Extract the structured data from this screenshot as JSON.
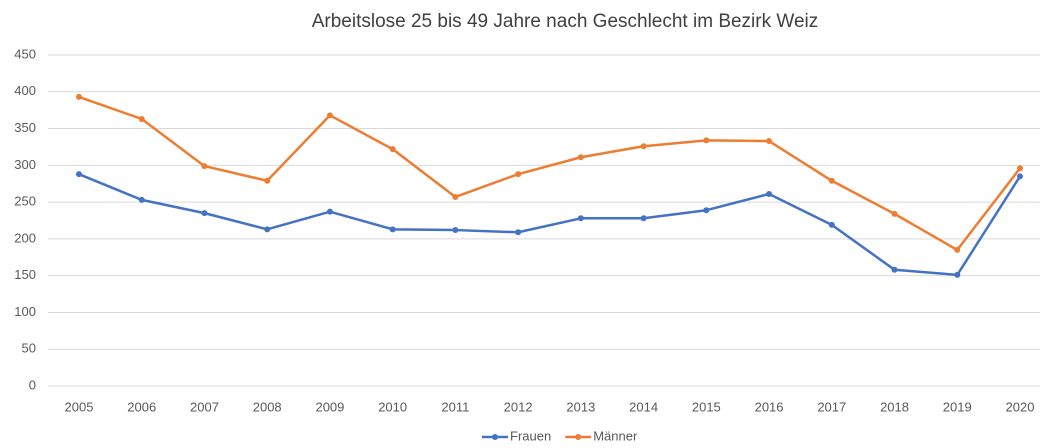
{
  "chart_data": {
    "type": "line",
    "title": "Arbeitslose 25 bis 49 Jahre nach Geschlecht im Bezirk Weiz",
    "categories": [
      "2005",
      "2006",
      "2007",
      "2008",
      "2009",
      "2010",
      "2011",
      "2012",
      "2013",
      "2014",
      "2015",
      "2016",
      "2017",
      "2018",
      "2019",
      "2020"
    ],
    "series": [
      {
        "name": "Frauen",
        "color": "#4472c4",
        "values": [
          288,
          253,
          235,
          213,
          237,
          213,
          212,
          209,
          228,
          228,
          239,
          261,
          219,
          158,
          151,
          285
        ]
      },
      {
        "name": "Männer",
        "color": "#ed7d31",
        "values": [
          393,
          363,
          299,
          279,
          368,
          322,
          257,
          288,
          311,
          326,
          334,
          333,
          279,
          234,
          185,
          296
        ]
      }
    ],
    "ylim": [
      0,
      450
    ],
    "yticks": [
      0,
      50,
      100,
      150,
      200,
      250,
      300,
      350,
      400,
      450
    ],
    "grid": true,
    "legend": "bottom"
  }
}
